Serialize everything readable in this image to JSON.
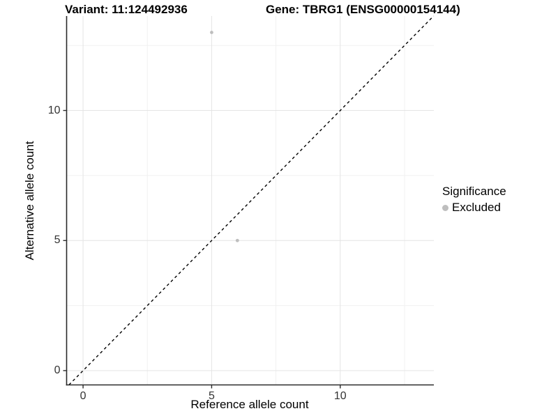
{
  "header": {
    "variant_title": "Variant: 11:124492936",
    "gene_title": "Gene: TBRG1 (ENSG00000154144)"
  },
  "axes": {
    "x_label": "Reference allele count",
    "y_label": "Alternative allele count"
  },
  "legend": {
    "title": "Significance",
    "items": [
      {
        "label": "Excluded",
        "color": "#bebebe",
        "shape": "circle"
      }
    ]
  },
  "chart_data": {
    "type": "scatter",
    "title": "Variant: 11:124492936   Gene: TBRG1 (ENSG00000154144)",
    "xlabel": "Reference allele count",
    "ylabel": "Alternative allele count",
    "xlim": [
      -0.64,
      13.64
    ],
    "ylim": [
      -0.55,
      13.63
    ],
    "x_ticks": [
      0,
      5,
      10
    ],
    "y_ticks": [
      0,
      5,
      10
    ],
    "x_minor_ticks": [
      2.5,
      7.5,
      12.5
    ],
    "y_minor_ticks": [
      2.5,
      7.5,
      12.5
    ],
    "grid": true,
    "legend_position": "right",
    "series": [
      {
        "name": "Excluded",
        "color": "#bebebe",
        "point_radius": 2.4,
        "points": [
          {
            "x": 5,
            "y": 13
          },
          {
            "x": 6,
            "y": 5
          }
        ]
      }
    ],
    "reference_line": {
      "type": "identity",
      "style": "dashed",
      "dash": [
        4,
        4
      ],
      "color": "#000000",
      "width": 1.4
    },
    "colors": {
      "background": "#ffffff",
      "grid_major": "#e4e4e4",
      "grid_minor": "#f1f1f1",
      "axis_line": "#2a2a2a",
      "tick_mark": "#2a2a2a",
      "tick_label": "#333333"
    }
  }
}
